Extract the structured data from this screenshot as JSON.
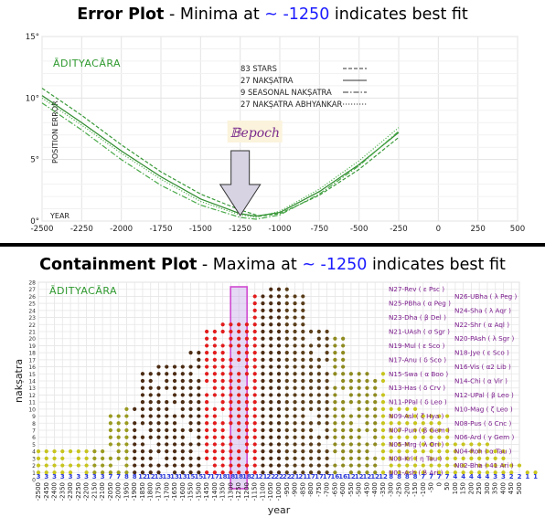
{
  "headers": {
    "top": {
      "bold": "Error Plot",
      "rest": " - Minima at ",
      "approx": "~ -1250",
      "tail": " indicates best fit"
    },
    "bottom": {
      "bold": "Containment Plot",
      "rest": " - Maxima at ",
      "approx": "~ -1250",
      "tail": " indicates best fit"
    }
  },
  "chart_data": [
    {
      "type": "line",
      "watermark": "ĀDITYACĀRA",
      "ylabel": "POSITION ERROR",
      "xlabel": "YEAR",
      "xlim": [
        -2500,
        500
      ],
      "ylim": [
        0,
        15
      ],
      "x_ticks": [
        "-2500",
        "-2250",
        "-2000",
        "-1750",
        "-1500",
        "-1250",
        "-1000",
        "-750",
        "-500",
        "-250",
        "0",
        "250",
        "500"
      ],
      "y_ticks": [
        "0°",
        "5°",
        "10°",
        "15°"
      ],
      "epoch_label": "𝔹epoch",
      "epoch_year": -1250,
      "series": [
        {
          "name": "83 STARS",
          "dash": "dash",
          "x": [
            -2500,
            -2250,
            -2000,
            -1750,
            -1500,
            -1250,
            -1125,
            -1000,
            -750,
            -500,
            -250
          ],
          "y": [
            10.8,
            8.6,
            6.2,
            4.0,
            2.2,
            0.9,
            0.4,
            0.6,
            2.1,
            4.2,
            6.8
          ]
        },
        {
          "name": "27 NAKṢATRA",
          "dash": "solid",
          "x": [
            -2500,
            -2250,
            -2000,
            -1750,
            -1500,
            -1250,
            -1150,
            -1000,
            -750,
            -500,
            -250
          ],
          "y": [
            10.2,
            8.0,
            5.7,
            3.6,
            1.8,
            0.6,
            0.4,
            0.7,
            2.4,
            4.6,
            7.2
          ]
        },
        {
          "name": "9 SEASONAL NAKṢATRA",
          "dash": "dashdot",
          "x": [
            -2500,
            -2250,
            -2000,
            -1750,
            -1500,
            -1250,
            -1150,
            -1000,
            -750,
            -500,
            -250
          ],
          "y": [
            9.6,
            7.4,
            5.0,
            2.9,
            1.3,
            0.3,
            0.15,
            0.5,
            2.2,
            4.5,
            7.3
          ]
        },
        {
          "name": "27 NAKṢATRA ABHYANKAR",
          "dash": "dot",
          "x": [
            -2500,
            -2250,
            -2000,
            -1750,
            -1500,
            -1250,
            -1150,
            -1000,
            -750,
            -500,
            -250
          ],
          "y": [
            10.0,
            7.8,
            5.5,
            3.4,
            1.6,
            0.5,
            0.3,
            0.8,
            2.6,
            4.9,
            7.6
          ]
        }
      ]
    },
    {
      "type": "scatter",
      "watermark": "ĀDITYACĀRA",
      "ylabel": "nakṣatra",
      "xlabel": "year",
      "xlim": [
        -2500,
        500
      ],
      "ylim": [
        0,
        28
      ],
      "x_step": 50,
      "y_ticks": [
        "0",
        "1",
        "2",
        "3",
        "4",
        "5",
        "6",
        "7",
        "8",
        "9",
        "10",
        "11",
        "12",
        "13",
        "14",
        "15",
        "16",
        "17",
        "18",
        "19",
        "20",
        "21",
        "22",
        "23",
        "24",
        "25",
        "26",
        "27",
        "28"
      ],
      "highlight_year": -1250,
      "nakshatra_labels_left": [
        {
          "y": 27,
          "text": "N27-Rev ( ε Psc )"
        },
        {
          "y": 25,
          "text": "N25-PBha ( α Peg )"
        },
        {
          "y": 23,
          "text": "N23-Dha ( β Del )"
        },
        {
          "y": 21,
          "text": "N21-UAsh ( σ Sgr )"
        },
        {
          "y": 19,
          "text": "N19-Mul ( ε Sco )"
        },
        {
          "y": 17,
          "text": "N17-Anu ( δ Sco )"
        },
        {
          "y": 15,
          "text": "N15-Swa ( α Boo )"
        },
        {
          "y": 13,
          "text": "N13-Has ( δ Crv )"
        },
        {
          "y": 11,
          "text": "N11-PPal ( δ Leo )"
        },
        {
          "y": 9,
          "text": "N09-Asl ( ζ Hya )"
        },
        {
          "y": 7,
          "text": "N07-Pun ( β Gem )"
        },
        {
          "y": 5,
          "text": "N05-Mrg ( λ Ori )"
        },
        {
          "y": 3,
          "text": "N03-Kri ( η Tau )"
        },
        {
          "y": 1,
          "text": "N01-Ash ( β Ari )"
        }
      ],
      "nakshatra_labels_right": [
        {
          "y": 26,
          "text": "N26-UBha ( λ Peg )"
        },
        {
          "y": 24,
          "text": "N24-Sha ( λ Aqr )"
        },
        {
          "y": 22,
          "text": "N22-Shr ( α Aql )"
        },
        {
          "y": 20,
          "text": "N20-PAsh ( λ Sgr )"
        },
        {
          "y": 18,
          "text": "N18-Jye ( ε Sco )"
        },
        {
          "y": 16,
          "text": "N16-Vis ( α2 Lib )"
        },
        {
          "y": 14,
          "text": "N14-Chi ( α Vir )"
        },
        {
          "y": 12,
          "text": "N12-UPal ( β Leo )"
        },
        {
          "y": 10,
          "text": "N10-Mag ( ζ Leo )"
        },
        {
          "y": 8,
          "text": "N08-Pus ( δ Cnc )"
        },
        {
          "y": 6,
          "text": "N06-Ard ( γ Gem )"
        },
        {
          "y": 4,
          "text": "N04-Roh ( α Tau )"
        },
        {
          "y": 2,
          "text": "N02-Bha ( 41 Ari )"
        }
      ],
      "column_counts": [
        3,
        3,
        3,
        3,
        3,
        3,
        3,
        3,
        3,
        7,
        7,
        8,
        8,
        12,
        12,
        13,
        13,
        13,
        13,
        15,
        15,
        17,
        17,
        18,
        18,
        18,
        18,
        21,
        21,
        22,
        22,
        22,
        21,
        21,
        17,
        17,
        17,
        16,
        16,
        12,
        12,
        12,
        12,
        12,
        8,
        8,
        8,
        8,
        7,
        7,
        7,
        7,
        4,
        4,
        4,
        4,
        4,
        3,
        3,
        2,
        2,
        1,
        1
      ]
    }
  ]
}
